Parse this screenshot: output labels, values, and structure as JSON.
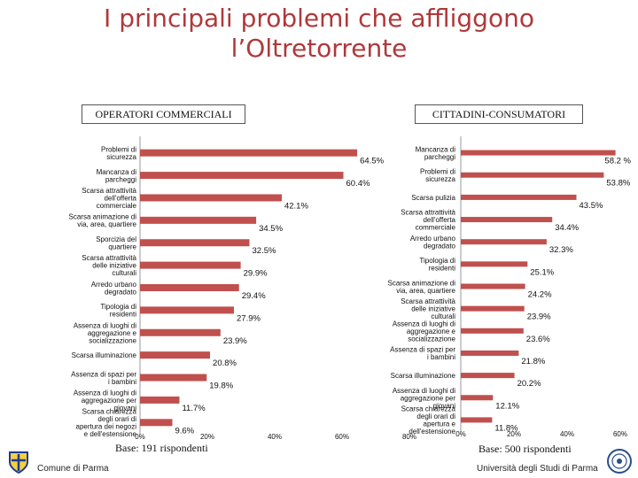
{
  "title": "I principali problemi che affliggono l’Oltretorrente",
  "footer": {
    "left": "Comune di Parma",
    "right": "Università degli Studi di Parma"
  },
  "colors": {
    "bar": "#c0504d",
    "title": "#b0383a"
  },
  "chart_data": [
    {
      "type": "bar",
      "orientation": "horizontal",
      "title": "OPERATORI COMMERCIALI",
      "categories": [
        "Problemi di sicurezza",
        "Mancanza di parcheggi",
        "Scarsa attrattività dell'offerta commerciale",
        "Scarsa animazione di via, area, quartiere",
        "Sporcizia del quartiere",
        "Scarsa attrattività delle iniziative culturali",
        "Arredo urbano degradato",
        "Tipologia di residenti",
        "Assenza di luoghi di aggregazione e socializzazione",
        "Scarsa illuminazione",
        "Assenza di spazi per i bambini",
        "Assenza di luoghi di aggregazione per giovani",
        "Scarsa chiarezza degli orari di apertura dei negozi e dell'estensione degli orari di apertura"
      ],
      "values": [
        64.5,
        60.4,
        42.1,
        34.5,
        32.5,
        29.9,
        29.4,
        27.9,
        23.9,
        20.8,
        19.8,
        11.7,
        9.6
      ],
      "data_labels": [
        "64.5%",
        "60.4%",
        "42.1%",
        "34.5%",
        "32.5%",
        "29.9%",
        "29.4%",
        "27.9%",
        "23.9%",
        "20.8%",
        "19.8%",
        "11.7%",
        "9.6%"
      ],
      "xlim": [
        0,
        80
      ],
      "xticks": [
        "0%",
        "20%",
        "40%",
        "60%",
        "80%"
      ],
      "note": "Base: 191 rispondenti"
    },
    {
      "type": "bar",
      "orientation": "horizontal",
      "title": "CITTADINI-CONSUMATORI",
      "categories": [
        "Mancanza di parcheggi",
        "Problemi di sicurezza",
        "Scarsa pulizia",
        "Scarsa attrattività dell'offerta commerciale",
        "Arredo urbano degradato",
        "Tipologia di residenti",
        "Scarsa animazione di via, area, quartiere",
        "Scarsa attrattività delle iniziative culturali",
        "Assenza di luoghi di aggregazione e socializzazione",
        "Assenza di spazi per i bambini",
        "Scarsa illuminazione",
        "Assenza di luoghi di aggregazione per giovani",
        "Scarsa chiarezza degli orari di apertura e dell'estensione degli orari di apertura"
      ],
      "values": [
        58.2,
        53.8,
        43.5,
        34.4,
        32.3,
        25.1,
        24.2,
        23.9,
        23.6,
        21.8,
        20.2,
        12.1,
        11.8
      ],
      "data_labels": [
        "58.2 %",
        "53.8%",
        "43.5%",
        "34.4%",
        "32.3%",
        "25.1%",
        "24.2%",
        "23.9%",
        "23.6%",
        "21.8%",
        "20.2%",
        "12.1%",
        "11.8%"
      ],
      "xlim": [
        0,
        60
      ],
      "xticks": [
        "0%",
        "20%",
        "40%",
        "60%"
      ],
      "note": "Base: 500 rispondenti"
    }
  ]
}
